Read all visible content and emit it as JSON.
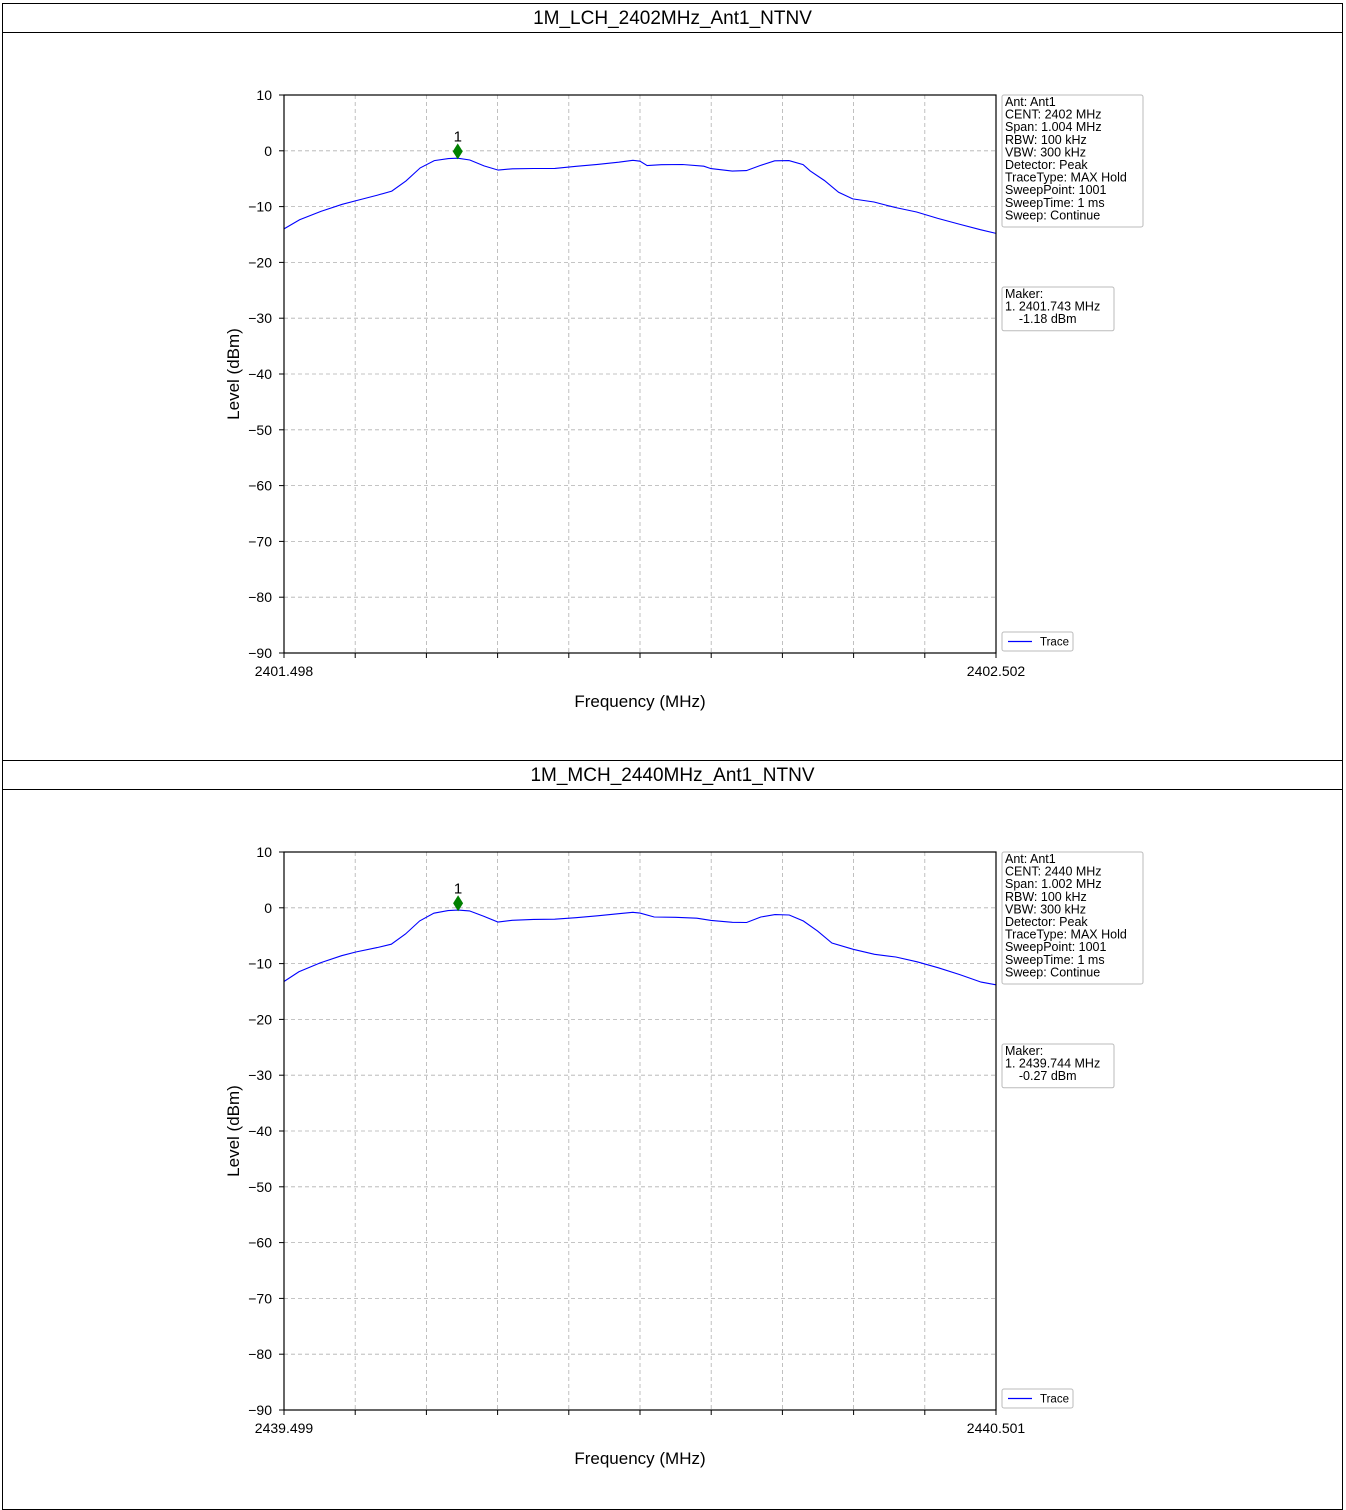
{
  "panels": [
    {
      "title": "1M_LCH_2402MHz_Ant1_NTNV",
      "chart_data": {
        "type": "line",
        "xlabel": "Frequency (MHz)",
        "ylabel": "Level (dBm)",
        "xlim": [
          2401.498,
          2402.502
        ],
        "ylim": [
          -90,
          10
        ],
        "x_tick_labels": [
          "2401.498",
          "2402.502"
        ],
        "y_ticks": [
          10,
          0,
          -10,
          -20,
          -30,
          -40,
          -50,
          -60,
          -70,
          -80,
          -90
        ],
        "grid": true,
        "series": [
          {
            "name": "Trace",
            "color": "#0000ff",
            "x": [
              2401.498,
              2401.52,
              2401.55,
              2401.58,
              2401.6,
              2401.63,
              2401.65,
              2401.67,
              2401.69,
              2401.71,
              2401.73,
              2401.743,
              2401.76,
              2401.78,
              2401.8,
              2401.82,
              2401.85,
              2401.88,
              2401.91,
              2401.94,
              2401.97,
              2401.99,
              2402.0,
              2402.01,
              2402.03,
              2402.06,
              2402.09,
              2402.1,
              2402.13,
              2402.15,
              2402.17,
              2402.19,
              2402.21,
              2402.23,
              2402.24,
              2402.26,
              2402.28,
              2402.3,
              2402.33,
              2402.36,
              2402.39,
              2402.42,
              2402.45,
              2402.48,
              2402.502
            ],
            "y": [
              -14.0,
              -12.5,
              -11.0,
              -9.6,
              -8.8,
              -7.8,
              -7.2,
              -5.5,
              -3.2,
              -1.8,
              -1.3,
              -1.18,
              -1.6,
              -2.8,
              -3.6,
              -3.3,
              -3.1,
              -3.0,
              -2.7,
              -2.5,
              -2.2,
              -1.8,
              -1.8,
              -2.5,
              -2.4,
              -2.5,
              -2.9,
              -3.3,
              -3.6,
              -3.4,
              -2.5,
              -1.8,
              -1.9,
              -2.6,
              -3.6,
              -5.2,
              -7.3,
              -8.6,
              -9.3,
              -10.3,
              -11.0,
              -12.0,
              -13.0,
              -14.1,
              -14.8
            ]
          }
        ],
        "marker": {
          "label": "1",
          "x": 2401.743,
          "y": -1.18,
          "color": "#008000"
        },
        "info_box": [
          "Ant: Ant1",
          "CENT: 2402 MHz",
          "Span: 1.004 MHz",
          "RBW: 100 kHz",
          "VBW: 300 kHz",
          "Detector: Peak",
          "TraceType: MAX Hold",
          "SweepPoint: 1001",
          "SweepTime: 1 ms",
          "Sweep: Continue"
        ],
        "maker_box": [
          "Maker:",
          "1. 2401.743 MHz",
          "    -1.18 dBm"
        ],
        "legend": "Trace"
      }
    },
    {
      "title": "1M_MCH_2440MHz_Ant1_NTNV",
      "chart_data": {
        "type": "line",
        "xlabel": "Frequency (MHz)",
        "ylabel": "Level (dBm)",
        "xlim": [
          2439.499,
          2440.501
        ],
        "ylim": [
          -90,
          10
        ],
        "x_tick_labels": [
          "2439.499",
          "2440.501"
        ],
        "y_ticks": [
          10,
          0,
          -10,
          -20,
          -30,
          -40,
          -50,
          -60,
          -70,
          -80,
          -90
        ],
        "grid": true,
        "series": [
          {
            "name": "Trace",
            "color": "#0000ff",
            "x": [
              2439.499,
              2439.52,
              2439.55,
              2439.58,
              2439.6,
              2439.63,
              2439.65,
              2439.67,
              2439.69,
              2439.71,
              2439.73,
              2439.744,
              2439.76,
              2439.78,
              2439.8,
              2439.82,
              2439.85,
              2439.88,
              2439.91,
              2439.94,
              2439.97,
              2439.99,
              2440.0,
              2440.02,
              2440.05,
              2440.08,
              2440.1,
              2440.13,
              2440.15,
              2440.17,
              2440.19,
              2440.21,
              2440.23,
              2440.25,
              2440.27,
              2440.3,
              2440.33,
              2440.36,
              2440.39,
              2440.42,
              2440.45,
              2440.48,
              2440.501
            ],
            "y": [
              -13.2,
              -11.6,
              -10.0,
              -8.6,
              -7.8,
              -7.0,
              -6.5,
              -4.8,
              -2.5,
              -1.0,
              -0.4,
              -0.27,
              -0.5,
              -1.6,
              -2.7,
              -2.3,
              -2.0,
              -1.9,
              -1.7,
              -1.5,
              -1.2,
              -0.9,
              -0.9,
              -1.5,
              -1.6,
              -1.9,
              -2.4,
              -2.7,
              -2.6,
              -1.5,
              -1.1,
              -1.3,
              -2.5,
              -4.3,
              -6.3,
              -7.3,
              -8.2,
              -8.8,
              -9.8,
              -10.9,
              -12.0,
              -13.2,
              -13.8
            ]
          }
        ],
        "marker": {
          "label": "1",
          "x": 2439.744,
          "y": -0.27,
          "color": "#008000"
        },
        "info_box": [
          "Ant: Ant1",
          "CENT: 2440 MHz",
          "Span: 1.002 MHz",
          "RBW: 100 kHz",
          "VBW: 300 kHz",
          "Detector: Peak",
          "TraceType: MAX Hold",
          "SweepPoint: 1001",
          "SweepTime: 1 ms",
          "Sweep: Continue"
        ],
        "maker_box": [
          "Maker:",
          "1. 2439.744 MHz",
          "    -0.27 dBm"
        ],
        "legend": "Trace"
      }
    }
  ]
}
